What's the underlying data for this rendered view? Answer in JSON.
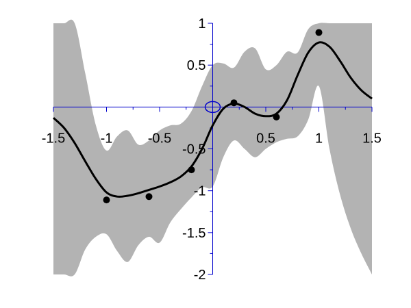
{
  "chart_data": {
    "type": "line",
    "title": "",
    "xlabel": "",
    "ylabel": "",
    "xlim": [
      -1.5,
      1.5
    ],
    "ylim": [
      -2,
      1
    ],
    "grid": false,
    "legend": "none",
    "x_ticks": [
      {
        "value": -1.5,
        "label": "-1.5"
      },
      {
        "value": -1,
        "label": "-1"
      },
      {
        "value": -0.5,
        "label": "-0.5"
      },
      {
        "value": 0.5,
        "label": "0.5"
      },
      {
        "value": 1,
        "label": "1"
      },
      {
        "value": 1.5,
        "label": "1.5"
      }
    ],
    "y_ticks": [
      {
        "value": 1,
        "label": "1"
      },
      {
        "value": 0.5,
        "label": "0.5"
      },
      {
        "value": -0.5,
        "label": "-0.5"
      },
      {
        "value": -1,
        "label": "-1"
      },
      {
        "value": -1.5,
        "label": "-1.5"
      },
      {
        "value": -2,
        "label": "-2"
      }
    ],
    "x_minor_ticks": [
      -0.75,
      -0.25,
      0.25,
      0.75,
      1.25
    ],
    "y_minor_ticks": [
      0.75,
      0.25,
      -0.25,
      -0.75,
      -1.25,
      -1.75
    ],
    "series": [
      {
        "kind": "mean",
        "color": "#000000",
        "x": [
          -1.5,
          -1.4,
          -1.3,
          -1.2,
          -1.1,
          -1.0,
          -0.9,
          -0.8,
          -0.7,
          -0.6,
          -0.5,
          -0.4,
          -0.3,
          -0.2,
          -0.1,
          0.0,
          0.1,
          0.2,
          0.3,
          0.4,
          0.5,
          0.6,
          0.7,
          0.8,
          0.9,
          1.0,
          1.1,
          1.2,
          1.3,
          1.4,
          1.5
        ],
        "y": [
          -0.13,
          -0.25,
          -0.43,
          -0.65,
          -0.86,
          -1.02,
          -1.07,
          -1.06,
          -1.03,
          -0.99,
          -0.95,
          -0.9,
          -0.83,
          -0.71,
          -0.5,
          -0.22,
          -0.02,
          0.04,
          0.0,
          -0.08,
          -0.11,
          -0.08,
          0.08,
          0.38,
          0.65,
          0.77,
          0.72,
          0.55,
          0.35,
          0.2,
          0.1
        ]
      },
      {
        "kind": "confidence-band",
        "color": "#b3b3b3",
        "x": [
          -1.5,
          -1.4,
          -1.3,
          -1.2,
          -1.1,
          -1.0,
          -0.9,
          -0.8,
          -0.7,
          -0.6,
          -0.5,
          -0.4,
          -0.3,
          -0.2,
          -0.1,
          0.0,
          0.1,
          0.2,
          0.3,
          0.4,
          0.5,
          0.6,
          0.7,
          0.8,
          0.9,
          1.0,
          1.1,
          1.2,
          1.3,
          1.4,
          1.5
        ],
        "lower": [
          -2.0,
          -2.0,
          -2.0,
          -1.7,
          -1.55,
          -1.52,
          -1.72,
          -1.85,
          -1.65,
          -1.55,
          -1.62,
          -1.38,
          -1.22,
          -1.08,
          -0.96,
          -0.95,
          -0.6,
          -0.4,
          -0.5,
          -0.6,
          -0.5,
          -0.42,
          -0.38,
          -0.35,
          -0.15,
          0.25,
          -0.5,
          -1.05,
          -1.45,
          -1.75,
          -2.0
        ],
        "upper": [
          1.0,
          1.0,
          1.0,
          0.4,
          -0.22,
          -0.52,
          -0.35,
          -0.28,
          -0.45,
          -0.4,
          -0.28,
          -0.22,
          -0.2,
          -0.05,
          0.25,
          0.5,
          0.52,
          0.47,
          0.66,
          0.7,
          0.45,
          0.5,
          0.66,
          0.65,
          0.93,
          1.0,
          1.0,
          1.0,
          1.0,
          1.0,
          1.0
        ]
      },
      {
        "kind": "observations",
        "color": "#000000",
        "x": [
          -1.0,
          -0.6,
          -0.2,
          0.2,
          0.6,
          1.0
        ],
        "y": [
          -1.11,
          -1.07,
          -0.75,
          0.05,
          -0.12,
          0.89
        ]
      }
    ],
    "axis_color": "#0000cc"
  }
}
